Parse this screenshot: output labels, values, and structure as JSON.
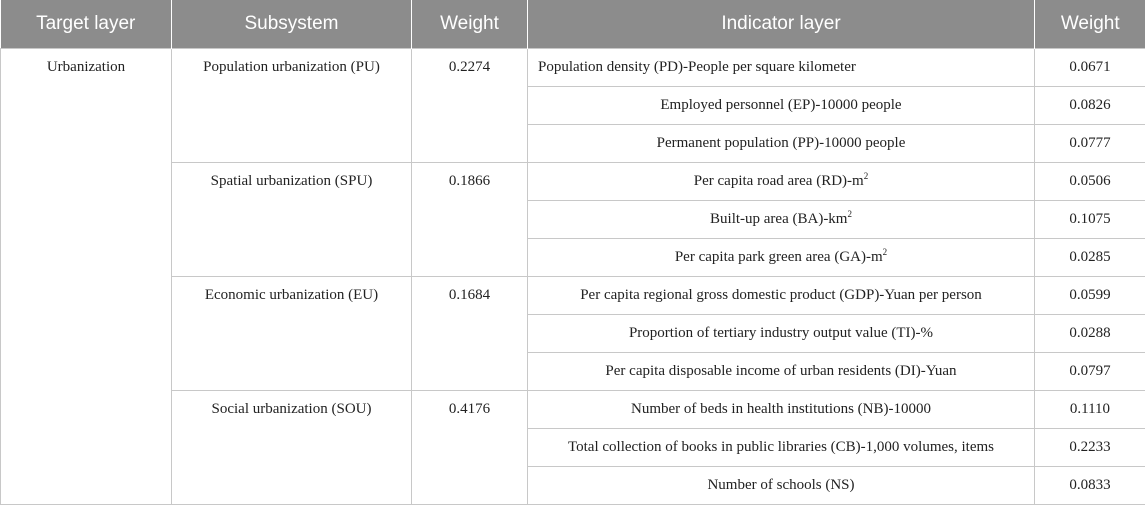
{
  "table": {
    "headers": [
      "Target layer",
      "Subsystem",
      "Weight",
      "Indicator layer",
      "Weight"
    ],
    "target": "Urbanization",
    "subsystems": [
      {
        "name": "Population urbanization (PU)",
        "weight": "0.2274",
        "indicators": [
          {
            "label": "Population density (PD)-People per square kilometer",
            "sup": "",
            "weight": "0.0671"
          },
          {
            "label": "Employed personnel (EP)-10000 people",
            "sup": "",
            "weight": "0.0826"
          },
          {
            "label": "Permanent population (PP)-10000 people",
            "sup": "",
            "weight": "0.0777"
          }
        ]
      },
      {
        "name": "Spatial urbanization (SPU)",
        "weight": "0.1866",
        "indicators": [
          {
            "label": "Per capita road area (RD)-m",
            "sup": "2",
            "weight": "0.0506"
          },
          {
            "label": "Built-up area (BA)-km",
            "sup": "2",
            "weight": "0.1075"
          },
          {
            "label": "Per capita park green area (GA)-m",
            "sup": "2",
            "weight": "0.0285"
          }
        ]
      },
      {
        "name": "Economic urbanization (EU)",
        "weight": "0.1684",
        "indicators": [
          {
            "label": "Per capita regional gross domestic product (GDP)-Yuan per person",
            "sup": "",
            "weight": "0.0599"
          },
          {
            "label": "Proportion of tertiary industry output value (TI)-%",
            "sup": "",
            "weight": "0.0288"
          },
          {
            "label": "Per capita disposable income of urban residents (DI)-Yuan",
            "sup": "",
            "weight": "0.0797"
          }
        ]
      },
      {
        "name": "Social urbanization (SOU)",
        "weight": "0.4176",
        "indicators": [
          {
            "label": "Number of beds in health institutions (NB)-10000",
            "sup": "",
            "weight": "0.1110"
          },
          {
            "label": "Total collection of books in public libraries (CB)-1,000 volumes, items",
            "sup": "",
            "weight": "0.2233"
          },
          {
            "label": "Number of schools (NS)",
            "sup": "",
            "weight": "0.0833"
          }
        ]
      }
    ]
  }
}
